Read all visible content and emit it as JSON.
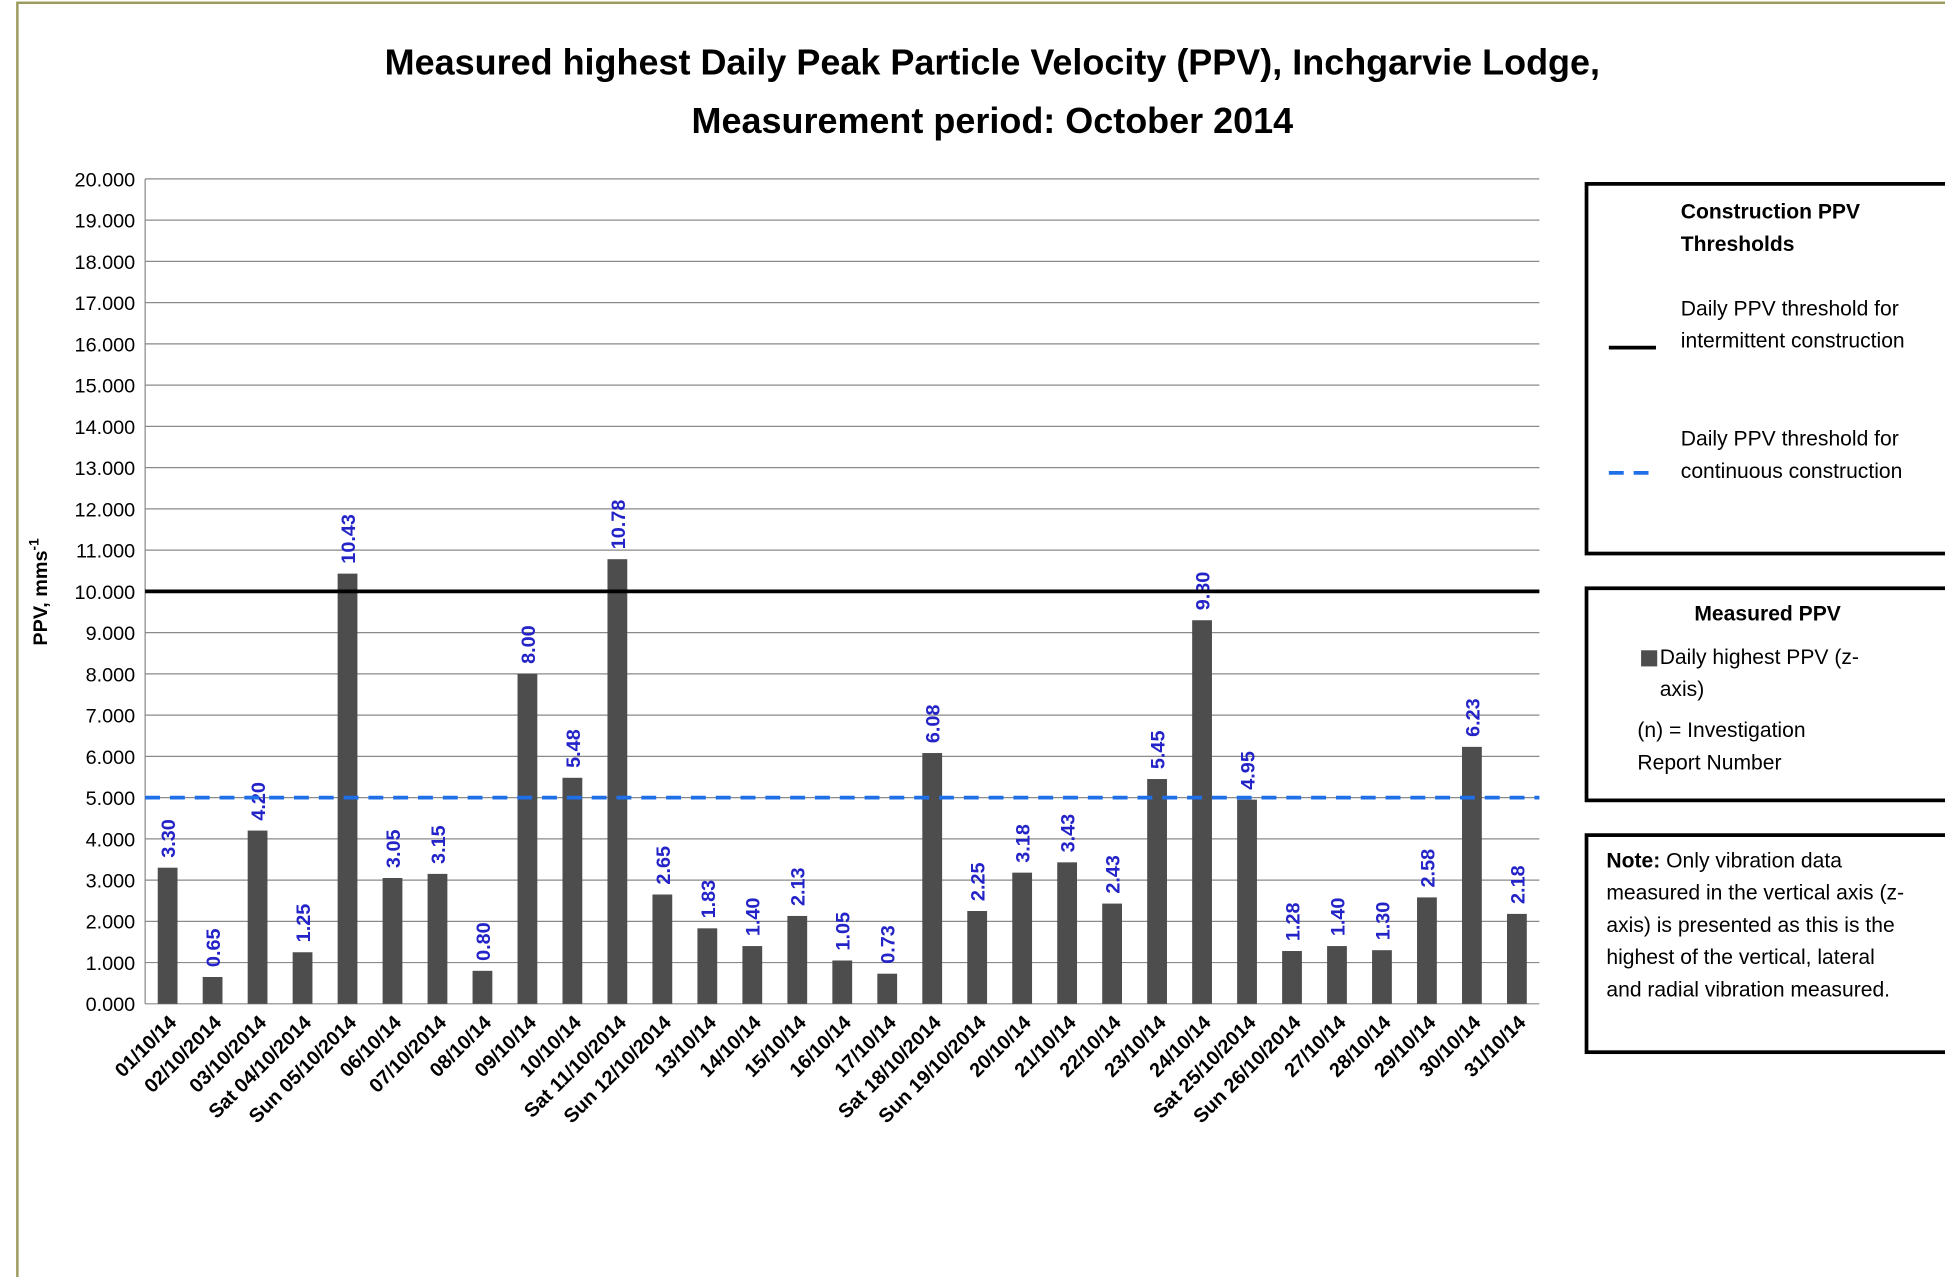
{
  "chart_data": {
    "type": "bar",
    "title": [
      "Measured highest Daily Peak Particle Velocity (PPV), Inchgarvie Lodge,",
      "Measurement period: October 2014"
    ],
    "y_label": "PPV, mms",
    "y_label_superscript": "-1",
    "categories": [
      "01/10/14",
      "02/10/2014",
      "03/10/2014",
      "Sat 04/10/2014",
      "Sun 05/10/2014",
      "06/10/14",
      "07/10/2014",
      "08/10/14",
      "09/10/14",
      "10/10/14",
      "Sat 11/10/2014",
      "Sun 12/10/2014",
      "13/10/14",
      "14/10/14",
      "15/10/14",
      "16/10/14",
      "17/10/14",
      "Sat 18/10/2014",
      "Sun 19/10/2014",
      "20/10/14",
      "21/10/14",
      "22/10/14",
      "23/10/14",
      "24/10/14",
      "Sat 25/10/2014",
      "Sun 26/10/2014",
      "27/10/14",
      "28/10/14",
      "29/10/14",
      "30/10/14",
      "31/10/14"
    ],
    "series": [
      {
        "name": "Daily highest PPV (z-axis)",
        "color": "#4d4d4d",
        "values": [
          3.3,
          0.65,
          4.2,
          1.25,
          10.43,
          3.05,
          3.15,
          0.8,
          8.0,
          5.48,
          10.78,
          2.65,
          1.83,
          1.4,
          2.13,
          1.05,
          0.73,
          6.08,
          2.25,
          3.18,
          3.43,
          2.43,
          5.45,
          9.3,
          4.95,
          1.28,
          1.4,
          1.3,
          2.58,
          6.23,
          2.18
        ],
        "value_labels": [
          "3.30",
          "0.65",
          "4.20",
          "1.25",
          "10.43",
          "3.05",
          "3.15",
          "0.80",
          "8.00",
          "5.48",
          "10.78",
          "2.65",
          "1.83",
          "1.40",
          "2.13",
          "1.05",
          "0.73",
          "6.08",
          "2.25",
          "3.18",
          "3.43",
          "2.43",
          "5.45",
          "9.30",
          "4.95",
          "1.28",
          "1.40",
          "1.30",
          "2.58",
          "6.23",
          "2.18"
        ],
        "label_color": "#2323c8"
      }
    ],
    "reference_lines": [
      {
        "name": "Daily PPV threshold for intermittent construction",
        "value": 10,
        "color": "#000000",
        "dashed": false
      },
      {
        "name": "Daily PPV threshold for continuous construction",
        "value": 5,
        "color": "#1f6fe8",
        "dashed": true
      }
    ],
    "ylim": [
      0,
      20
    ],
    "yticks": [
      {
        "value": 0,
        "label": "0.000"
      },
      {
        "value": 1,
        "label": "1.000"
      },
      {
        "value": 2,
        "label": "2.000"
      },
      {
        "value": 3,
        "label": "3.000"
      },
      {
        "value": 4,
        "label": "4.000"
      },
      {
        "value": 5,
        "label": "5.000"
      },
      {
        "value": 6,
        "label": "6.000"
      },
      {
        "value": 7,
        "label": "7.000"
      },
      {
        "value": 8,
        "label": "8.000"
      },
      {
        "value": 9,
        "label": "9.000"
      },
      {
        "value": 10,
        "label": "10.000"
      },
      {
        "value": 11,
        "label": "11.000"
      },
      {
        "value": 12,
        "label": "12.000"
      },
      {
        "value": 13,
        "label": "13.000"
      },
      {
        "value": 14,
        "label": "14.000"
      },
      {
        "value": 15,
        "label": "15.000"
      },
      {
        "value": 16,
        "label": "16.000"
      },
      {
        "value": 17,
        "label": "17.000"
      },
      {
        "value": 18,
        "label": "18.000"
      },
      {
        "value": 19,
        "label": "19.000"
      },
      {
        "value": 20,
        "label": "20.000"
      }
    ],
    "grid": true,
    "legend": {
      "threshold_title": "Construction PPV Thresholds",
      "measured_title": "Measured PPV",
      "report_note": "(n) = Investigation Report Number"
    },
    "note": {
      "label": "Note:",
      "text": "Only vibration data measured in the vertical axis (z-axis) is presented as this is the highest of the vertical, lateral and radial vibration measured."
    }
  }
}
